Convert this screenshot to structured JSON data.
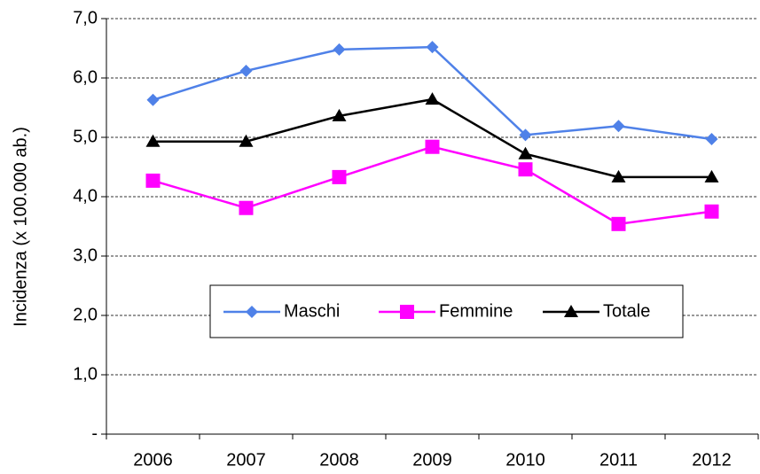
{
  "chart_data": {
    "type": "line",
    "y_label": "Incidenza (x 100.000 ab.)",
    "categories": [
      "2006",
      "2007",
      "2008",
      "2009",
      "2010",
      "2011",
      "2012"
    ],
    "series": [
      {
        "name": "Maschi",
        "color": "#4f81e8",
        "marker": "diamond",
        "values": [
          5.63,
          6.12,
          6.48,
          6.52,
          5.04,
          5.19,
          4.97
        ]
      },
      {
        "name": "Femmine",
        "color": "#ff00ff",
        "marker": "square",
        "values": [
          4.27,
          3.81,
          4.33,
          4.84,
          4.46,
          3.54,
          3.75
        ]
      },
      {
        "name": "Totale",
        "color": "#000000",
        "marker": "triangle",
        "values": [
          4.93,
          4.93,
          5.36,
          5.64,
          4.72,
          4.33,
          4.33
        ]
      }
    ],
    "ylim": [
      0,
      7
    ],
    "yticks": [
      {
        "value": 0,
        "label": "-"
      },
      {
        "value": 1,
        "label": "1,0"
      },
      {
        "value": 2,
        "label": "2,0"
      },
      {
        "value": 3,
        "label": "3,0"
      },
      {
        "value": 4,
        "label": "4,0"
      },
      {
        "value": 5,
        "label": "5,0"
      },
      {
        "value": 6,
        "label": "6,0"
      },
      {
        "value": 7,
        "label": "7,0"
      }
    ],
    "grid": true
  }
}
